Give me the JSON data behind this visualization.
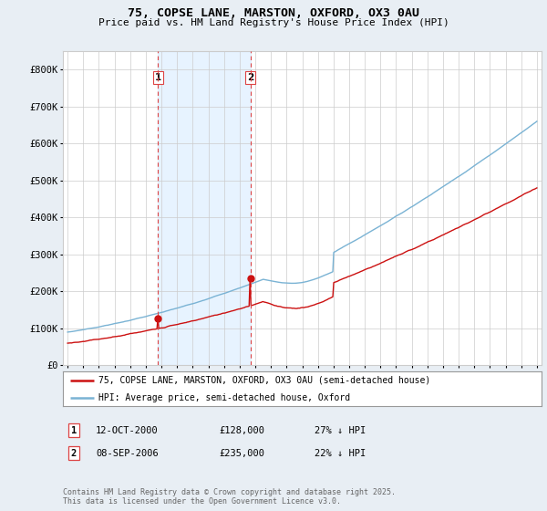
{
  "title_line1": "75, COPSE LANE, MARSTON, OXFORD, OX3 0AU",
  "title_line2": "Price paid vs. HM Land Registry's House Price Index (HPI)",
  "background_color": "#e8eef4",
  "plot_bg_color": "#ffffff",
  "grid_color": "#cccccc",
  "hpi_color": "#7ab3d4",
  "price_color": "#cc1111",
  "vline_color": "#dd4444",
  "shade_color": "#ddeeff",
  "ylim": [
    0,
    850000
  ],
  "yticks": [
    0,
    100000,
    200000,
    300000,
    400000,
    500000,
    600000,
    700000,
    800000
  ],
  "ytick_labels": [
    "£0",
    "£100K",
    "£200K",
    "£300K",
    "£400K",
    "£500K",
    "£600K",
    "£700K",
    "£800K"
  ],
  "xlim_start": 1994.7,
  "xlim_end": 2025.3,
  "sale1_year": 2000.79,
  "sale1_price": 128000,
  "sale1_label": "1",
  "sale2_year": 2006.69,
  "sale2_price": 235000,
  "sale2_label": "2",
  "legend_label1": "75, COPSE LANE, MARSTON, OXFORD, OX3 0AU (semi-detached house)",
  "legend_label2": "HPI: Average price, semi-detached house, Oxford",
  "footer_line1": "Contains HM Land Registry data © Crown copyright and database right 2025.",
  "footer_line2": "This data is licensed under the Open Government Licence v3.0.",
  "table_row1": [
    "1",
    "12-OCT-2000",
    "£128,000",
    "27% ↓ HPI"
  ],
  "table_row2": [
    "2",
    "08-SEP-2006",
    "£235,000",
    "22% ↓ HPI"
  ]
}
